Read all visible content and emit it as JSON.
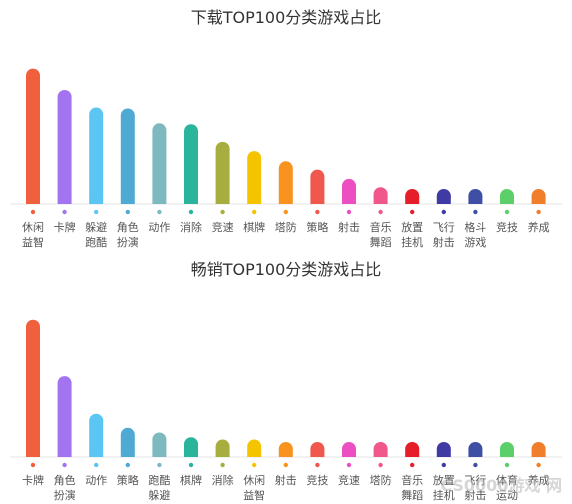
{
  "chart_data": [
    {
      "type": "bar",
      "title": "下载TOP100分类游戏占比",
      "categories": [
        "休闲益智",
        "卡牌",
        "躲避跑酷",
        "角色扮演",
        "动作",
        "消除",
        "竞速",
        "棋牌",
        "塔防",
        "策略",
        "射击",
        "音乐舞蹈",
        "放置挂机",
        "飞行射击",
        "格斗游戏",
        "竞技",
        "养成"
      ],
      "label_lines": [
        [
          "休闲",
          "益智"
        ],
        [
          "卡牌"
        ],
        [
          "躲避",
          "跑酷"
        ],
        [
          "角色",
          "扮演"
        ],
        [
          "动作"
        ],
        [
          "消除"
        ],
        [
          "竞速"
        ],
        [
          "棋牌"
        ],
        [
          "塔防"
        ],
        [
          "策略"
        ],
        [
          "射击"
        ],
        [
          "音乐",
          "舞蹈"
        ],
        [
          "放置",
          "挂机"
        ],
        [
          "飞行",
          "射击"
        ],
        [
          "格斗",
          "游戏"
        ],
        [
          "竞技"
        ],
        [
          "养成"
        ]
      ],
      "values": [
        14.5,
        12.2,
        10.3,
        10.2,
        8.6,
        8.5,
        6.6,
        5.6,
        4.5,
        3.6,
        2.6,
        1.7,
        0.6,
        0.5,
        0.5,
        0.5,
        0.5
      ],
      "colors": [
        "#f0603f",
        "#a374f0",
        "#5bc6f3",
        "#4eaad3",
        "#7eb9bf",
        "#2ab49b",
        "#a7ad3e",
        "#f5c400",
        "#f7931e",
        "#f0584e",
        "#ec4fc1",
        "#f0588c",
        "#e61e2a",
        "#3f3aa4",
        "#3f4fa3",
        "#5ccf6b",
        "#f07e2a"
      ],
      "ylim": [
        0,
        15
      ]
    },
    {
      "type": "bar",
      "title": "畅销TOP100分类游戏占比",
      "categories": [
        "卡牌",
        "角色扮演",
        "动作",
        "策略",
        "跑酷躲避",
        "棋牌",
        "消除",
        "休闲益智",
        "射击",
        "竞技",
        "竞速",
        "塔防",
        "音乐舞蹈",
        "放置挂机",
        "飞行射击",
        "体育运动",
        "养成"
      ],
      "label_lines": [
        [
          "卡牌"
        ],
        [
          "角色",
          "扮演"
        ],
        [
          "动作"
        ],
        [
          "策略"
        ],
        [
          "跑酷",
          "躲避"
        ],
        [
          "棋牌"
        ],
        [
          "消除"
        ],
        [
          "休闲",
          "益智"
        ],
        [
          "射击"
        ],
        [
          "竞技"
        ],
        [
          "竞速"
        ],
        [
          "塔防"
        ],
        [
          "音乐",
          "舞蹈"
        ],
        [
          "放置",
          "挂机"
        ],
        [
          "飞行",
          "射击"
        ],
        [
          "体育",
          "运动"
        ],
        [
          "养成"
        ]
      ],
      "values": [
        29.0,
        17.0,
        9.0,
        6.0,
        5.0,
        4.0,
        3.5,
        3.5,
        2.5,
        1.0,
        1.0,
        1.0,
        1.0,
        0.7,
        0.7,
        0.7,
        0.5
      ],
      "colors": [
        "#f0603f",
        "#a374f0",
        "#5bc6f3",
        "#4eaad3",
        "#7eb9bf",
        "#2ab49b",
        "#a7ad3e",
        "#f5c400",
        "#f7931e",
        "#f0584e",
        "#ec4fc1",
        "#f0588c",
        "#e61e2a",
        "#3f3aa4",
        "#3f4fa3",
        "#5ccf6b",
        "#f07e2a"
      ],
      "ylim": [
        0,
        30
      ]
    }
  ],
  "watermark": "CS0000游戏 网"
}
